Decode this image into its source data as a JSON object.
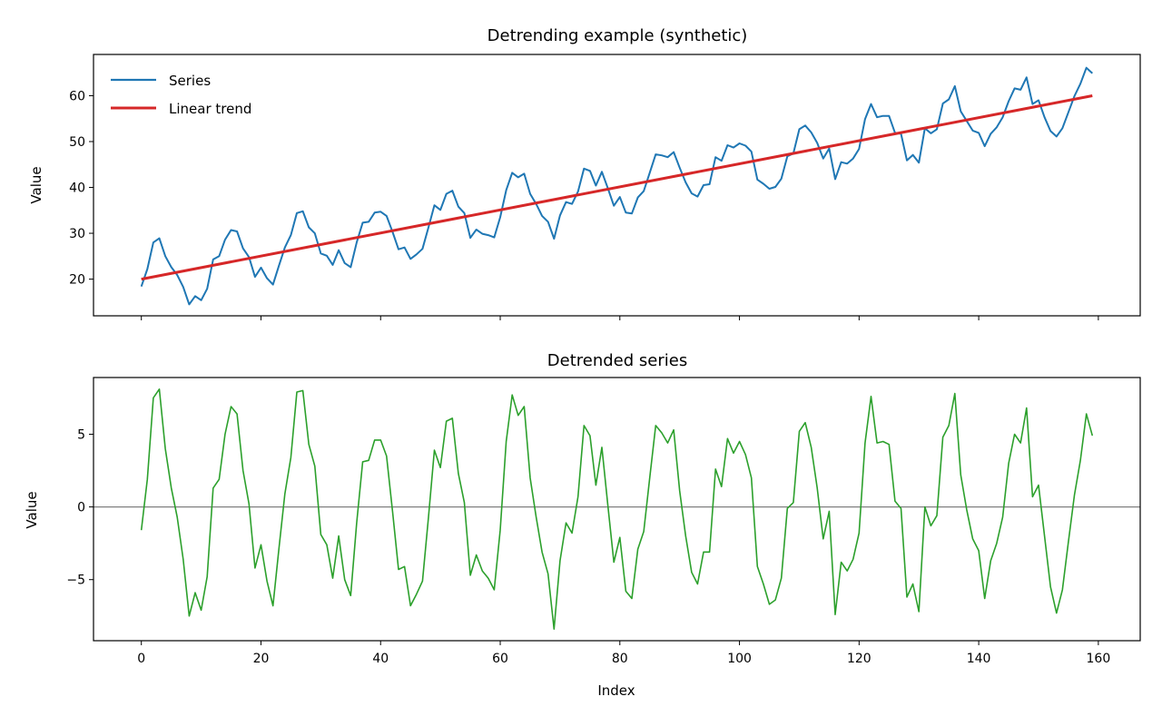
{
  "colors": {
    "series": "#1f77b4",
    "trend": "#d62728",
    "detrended": "#2ca02c",
    "zero_line": "#808080",
    "axes": "#000000"
  },
  "chart_data": [
    {
      "type": "line",
      "title": "Detrending example (synthetic)",
      "xlabel": "",
      "ylabel": "Value",
      "xlim": [
        -8,
        167
      ],
      "ylim": [
        12,
        69
      ],
      "x_ticks": [
        0,
        20,
        40,
        60,
        80,
        100,
        120,
        140,
        160
      ],
      "x_tick_labels_visible": false,
      "y_ticks": [
        20,
        30,
        40,
        50,
        60
      ],
      "grid": false,
      "legend": {
        "placement": "upper-left",
        "frame": false
      },
      "series": [
        {
          "name": "Series",
          "color": "#1f77b4",
          "x": [
            0,
            1,
            2,
            3,
            4,
            5,
            6,
            7,
            8,
            9,
            10,
            11,
            12,
            13,
            14,
            15,
            16,
            17,
            18,
            19,
            20,
            21,
            22,
            23,
            24,
            25,
            26,
            27,
            28,
            29,
            30,
            31,
            32,
            33,
            34,
            35,
            36,
            37,
            38,
            39,
            40,
            41,
            42,
            43,
            44,
            45,
            46,
            47,
            48,
            49,
            50,
            51,
            52,
            53,
            54,
            55,
            56,
            57,
            58,
            59,
            60,
            61,
            62,
            63,
            64,
            65,
            66,
            67,
            68,
            69,
            70,
            71,
            72,
            73,
            74,
            75,
            76,
            77,
            78,
            79,
            80,
            81,
            82,
            83,
            84,
            85,
            86,
            87,
            88,
            89,
            90,
            91,
            92,
            93,
            94,
            95,
            96,
            97,
            98,
            99,
            100,
            101,
            102,
            103,
            104,
            105,
            106,
            107,
            108,
            109,
            110,
            111,
            112,
            113,
            114,
            115,
            116,
            117,
            118,
            119,
            120,
            121,
            122,
            123,
            124,
            125,
            126,
            127,
            128,
            129,
            130,
            131,
            132,
            133,
            134,
            135,
            136,
            137,
            138,
            139,
            140,
            141,
            142,
            143,
            144,
            145,
            146,
            147,
            148,
            149,
            150,
            151,
            152,
            153,
            154,
            155,
            156,
            157,
            158,
            159
          ],
          "y": [
            18.4,
            22.2,
            28.0,
            28.9,
            25.0,
            22.6,
            20.9,
            18.3,
            14.5,
            16.3,
            15.4,
            17.9,
            24.3,
            25.0,
            28.6,
            30.7,
            30.4,
            26.7,
            24.8,
            20.5,
            22.5,
            20.2,
            18.8,
            22.9,
            26.9,
            29.6,
            34.4,
            34.8,
            31.3,
            30.0,
            25.6,
            25.1,
            23.1,
            26.3,
            23.5,
            22.6,
            28.0,
            32.3,
            32.5,
            34.5,
            34.7,
            33.8,
            30.3,
            26.5,
            26.9,
            24.4,
            25.4,
            26.6,
            31.3,
            36.1,
            35.1,
            38.6,
            39.3,
            35.8,
            34.4,
            29.0,
            30.8,
            29.9,
            29.6,
            29.1,
            33.5,
            39.4,
            43.2,
            42.2,
            43.0,
            38.6,
            36.4,
            33.8,
            32.5,
            28.8,
            33.9,
            36.8,
            36.4,
            39.1,
            44.1,
            43.6,
            40.4,
            43.4,
            39.8,
            36.0,
            37.9,
            34.5,
            34.3,
            37.8,
            39.2,
            43.2,
            47.2,
            47.0,
            46.6,
            47.7,
            44.3,
            41.1,
            38.7,
            38.0,
            40.5,
            40.7,
            46.6,
            45.8,
            49.2,
            48.7,
            49.6,
            49.1,
            47.8,
            41.7,
            40.8,
            39.7,
            40.1,
            41.9,
            46.8,
            47.4,
            52.7,
            53.5,
            52.0,
            49.7,
            46.3,
            48.5,
            41.8,
            45.5,
            45.2,
            46.3,
            48.4,
            54.9,
            58.2,
            55.3,
            55.6,
            55.6,
            51.9,
            51.7,
            45.9,
            47.1,
            45.4,
            52.9,
            51.8,
            52.7,
            58.3,
            59.2,
            62.1,
            56.6,
            54.5,
            52.4,
            51.9,
            49.0,
            51.7,
            53.1,
            55.3,
            58.8,
            61.6,
            61.3,
            64.0,
            58.2,
            59.0,
            55.3,
            52.3,
            51.1,
            52.9,
            56.4,
            59.9,
            62.6,
            66.1,
            64.9
          ]
        },
        {
          "name": "Linear trend",
          "color": "#d62728",
          "x": [
            0,
            159
          ],
          "y": [
            20.0,
            60.0
          ]
        }
      ]
    },
    {
      "type": "line",
      "title": "Detrended series",
      "xlabel": "Index",
      "ylabel": "Value",
      "xlim": [
        -8,
        167
      ],
      "ylim": [
        -9.2,
        8.9
      ],
      "x_ticks": [
        0,
        20,
        40,
        60,
        80,
        100,
        120,
        140,
        160
      ],
      "y_ticks": [
        -5,
        0,
        5
      ],
      "grid": false,
      "reference_line": {
        "y": 0,
        "color": "#808080"
      },
      "series": [
        {
          "name": "",
          "color": "#2ca02c",
          "x": [
            0,
            1,
            2,
            3,
            4,
            5,
            6,
            7,
            8,
            9,
            10,
            11,
            12,
            13,
            14,
            15,
            16,
            17,
            18,
            19,
            20,
            21,
            22,
            23,
            24,
            25,
            26,
            27,
            28,
            29,
            30,
            31,
            32,
            33,
            34,
            35,
            36,
            37,
            38,
            39,
            40,
            41,
            42,
            43,
            44,
            45,
            46,
            47,
            48,
            49,
            50,
            51,
            52,
            53,
            54,
            55,
            56,
            57,
            58,
            59,
            60,
            61,
            62,
            63,
            64,
            65,
            66,
            67,
            68,
            69,
            70,
            71,
            72,
            73,
            74,
            75,
            76,
            77,
            78,
            79,
            80,
            81,
            82,
            83,
            84,
            85,
            86,
            87,
            88,
            89,
            90,
            91,
            92,
            93,
            94,
            95,
            96,
            97,
            98,
            99,
            100,
            101,
            102,
            103,
            104,
            105,
            106,
            107,
            108,
            109,
            110,
            111,
            112,
            113,
            114,
            115,
            116,
            117,
            118,
            119,
            120,
            121,
            122,
            123,
            124,
            125,
            126,
            127,
            128,
            129,
            130,
            131,
            132,
            133,
            134,
            135,
            136,
            137,
            138,
            139,
            140,
            141,
            142,
            143,
            144,
            145,
            146,
            147,
            148,
            149,
            150,
            151,
            152,
            153,
            154,
            155,
            156,
            157,
            158,
            159
          ],
          "y": [
            -1.6,
            1.9,
            7.5,
            8.1,
            4.0,
            1.3,
            -0.7,
            -3.6,
            -7.5,
            -5.9,
            -7.1,
            -4.8,
            1.3,
            1.9,
            5.0,
            6.9,
            6.4,
            2.5,
            0.2,
            -4.2,
            -2.6,
            -5.1,
            -6.8,
            -2.9,
            0.9,
            3.4,
            7.9,
            8.0,
            4.3,
            2.8,
            -1.9,
            -2.6,
            -4.9,
            -2.0,
            -5.0,
            -6.1,
            -1.1,
            3.1,
            3.2,
            4.6,
            4.6,
            3.5,
            -0.3,
            -4.3,
            -4.1,
            -6.8,
            -6.0,
            -5.1,
            -0.7,
            3.9,
            2.7,
            5.9,
            6.1,
            2.3,
            0.3,
            -4.7,
            -3.3,
            -4.4,
            -4.9,
            -5.7,
            -1.6,
            4.5,
            7.7,
            6.3,
            6.9,
            2.0,
            -0.7,
            -3.1,
            -4.6,
            -8.4,
            -3.7,
            -1.1,
            -1.8,
            0.7,
            5.6,
            4.9,
            1.5,
            4.1,
            0.1,
            -3.8,
            -2.1,
            -5.8,
            -6.3,
            -2.9,
            -1.7,
            2.0,
            5.6,
            5.1,
            4.4,
            5.3,
            1.1,
            -2.0,
            -4.5,
            -5.3,
            -3.1,
            -3.1,
            2.6,
            1.4,
            4.7,
            3.7,
            4.5,
            3.6,
            2.0,
            -4.1,
            -5.3,
            -6.7,
            -6.4,
            -4.9,
            -0.1,
            0.3,
            5.2,
            5.8,
            4.1,
            1.3,
            -2.2,
            -0.3,
            -7.4,
            -3.8,
            -4.4,
            -3.6,
            -1.8,
            4.4,
            7.6,
            4.4,
            4.5,
            4.3,
            0.4,
            -0.1,
            -6.2,
            -5.3,
            -7.2,
            0.0,
            -1.3,
            -0.6,
            4.8,
            5.6,
            7.8,
            2.2,
            -0.2,
            -2.2,
            -3.0,
            -6.3,
            -3.7,
            -2.5,
            -0.7,
            3.0,
            5.0,
            4.4,
            6.8,
            0.7,
            1.5,
            -2.0,
            -5.5,
            -7.3,
            -5.7,
            -2.4,
            0.8,
            3.2,
            6.4,
            4.9
          ]
        }
      ]
    }
  ]
}
